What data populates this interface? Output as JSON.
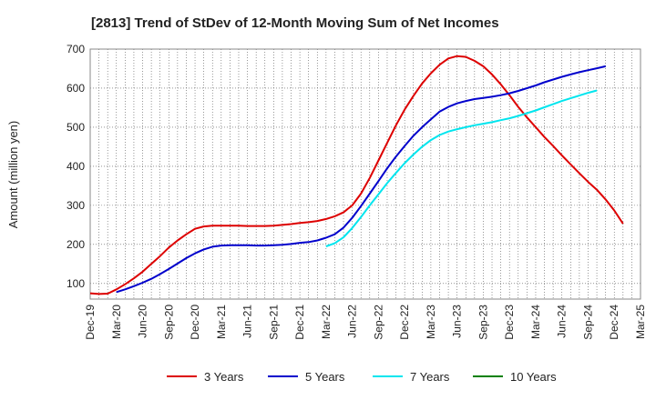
{
  "chart_data": {
    "type": "line",
    "title": "[2813]  Trend of StDev of 12-Month Moving Sum of Net Incomes",
    "ylabel": "Amount (million yen)",
    "xlabel": "",
    "ylim": [
      60,
      700
    ],
    "yticks": [
      100,
      200,
      300,
      400,
      500,
      600,
      700
    ],
    "xticks": [
      "Dec-19",
      "Mar-20",
      "Jun-20",
      "Sep-20",
      "Dec-20",
      "Mar-21",
      "Jun-21",
      "Sep-21",
      "Dec-21",
      "Mar-22",
      "Jun-22",
      "Sep-22",
      "Dec-22",
      "Mar-23",
      "Jun-23",
      "Sep-23",
      "Dec-23",
      "Mar-24",
      "Jun-24",
      "Sep-24",
      "Dec-24",
      "Mar-25"
    ],
    "grid": true,
    "legend_position": "bottom",
    "series": [
      {
        "name": "3 Years",
        "color": "#dd0000",
        "start": "Dec-19",
        "values": [
          75,
          73,
          74,
          85,
          98,
          113,
          130,
          150,
          170,
          192,
          210,
          226,
          240,
          246,
          248,
          248,
          248,
          248,
          247,
          247,
          247,
          248,
          250,
          252,
          255,
          257,
          260,
          265,
          272,
          282,
          300,
          330,
          370,
          415,
          460,
          505,
          545,
          580,
          612,
          638,
          660,
          676,
          682,
          680,
          670,
          656,
          635,
          610,
          582,
          552,
          525,
          500,
          475,
          452,
          428,
          405,
          382,
          360,
          340,
          315,
          287,
          253
        ]
      },
      {
        "name": "5 Years",
        "color": "#0000cc",
        "start": "Mar-20",
        "values": [
          78,
          85,
          93,
          102,
          112,
          124,
          137,
          151,
          165,
          177,
          187,
          194,
          197,
          198,
          198,
          198,
          197,
          197,
          198,
          199,
          201,
          204,
          206,
          210,
          217,
          226,
          243,
          268,
          298,
          330,
          362,
          395,
          425,
          452,
          478,
          500,
          520,
          540,
          552,
          561,
          567,
          572,
          575,
          578,
          582,
          587,
          593,
          600,
          607,
          615,
          622,
          629,
          635,
          641,
          646,
          651,
          656
        ]
      },
      {
        "name": "7 Years",
        "color": "#00e5ee",
        "start": "Mar-22",
        "values": [
          195,
          203,
          218,
          242,
          270,
          300,
          328,
          357,
          383,
          408,
          430,
          450,
          467,
          480,
          489,
          495,
          500,
          505,
          509,
          513,
          518,
          523,
          529,
          536,
          543,
          551,
          559,
          567,
          574,
          581,
          588,
          594
        ]
      },
      {
        "name": "10 Years",
        "color": "#008000",
        "start": "Mar-22",
        "values": []
      }
    ]
  }
}
